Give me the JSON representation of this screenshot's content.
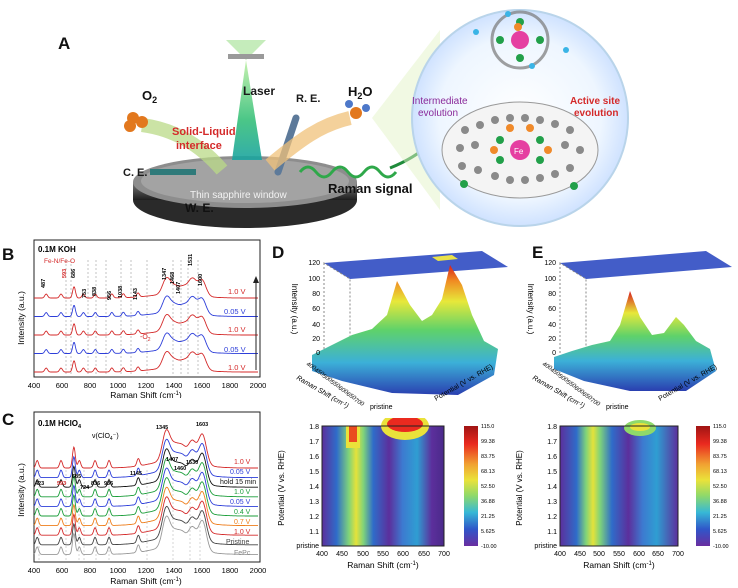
{
  "panel_labels": {
    "A": "A",
    "B": "B",
    "C": "C",
    "D": "D",
    "E": "E"
  },
  "schematic": {
    "o2": "O",
    "o2_sub": "2",
    "h2o_pre": "H",
    "h2o_sub": "2",
    "h2o_post": "O",
    "laser": "Laser",
    "re": "R. E.",
    "ce": "C. E.",
    "we": "W. E.",
    "interface_line1": "Solid-Liquid",
    "interface_line2": "interface",
    "window": "Thin sapphire window",
    "raman_signal": "Raman signal",
    "intermediate_line1": "Intermediate",
    "intermediate_line2": "evolution",
    "active_line1": "Active site",
    "active_line2": "evolution",
    "fe": "Fe"
  },
  "colors": {
    "red": "#d42a2a",
    "blue": "#2d3ed9",
    "green": "#1b9e3a",
    "orange": "#ee7e1c",
    "gray": "#999999",
    "darkgray": "#444444",
    "purple": "#8a2a9a"
  },
  "panel_B": {
    "title": "0.1M KOH",
    "label_fe": "Fe-N/Fe-O",
    "peak_labels": [
      "487",
      "593",
      "686",
      "753",
      "838",
      "956",
      "1038",
      "1143",
      "1347",
      "1468",
      "1407",
      "1531",
      "1600"
    ],
    "trace_labels": [
      "1.0 V",
      "0.05 V",
      "1.0 V",
      "0.05 V",
      "1.0 V"
    ],
    "o2_pre": "-O",
    "o2_sub": "2",
    "xaxis_label": "Raman Shift (cm",
    "xaxis_sup": "-1",
    "xaxis_end": ")",
    "yaxis_label": "Intensity (a.u.)",
    "xticks": [
      "400",
      "600",
      "800",
      "1000",
      "1200",
      "1400",
      "1600",
      "1800",
      "2000"
    ]
  },
  "panel_C": {
    "title": "0.1M HClO",
    "title_sub": "4",
    "annot_clo4_pre": "ν(ClO",
    "annot_clo4_sub": "4",
    "annot_clo4_post": "⁻)",
    "peak_labels": [
      "1345",
      "1603",
      "1407",
      "1530",
      "1460",
      "423",
      "593",
      "685",
      "724",
      "836",
      "936",
      "1145"
    ],
    "trace_labels": [
      "1.0 V",
      "0.05 V",
      "hold 15 min",
      "1.0 V",
      "0.05 V",
      "0.4 V",
      "0.7 V",
      "1.0 V",
      "Pristine",
      "FePc"
    ],
    "xaxis_label": "Raman Shift (cm",
    "xaxis_sup": "-1",
    "xaxis_end": ")",
    "yaxis_label": "Intensity (a.u.)",
    "xticks": [
      "400",
      "600",
      "800",
      "1000",
      "1200",
      "1400",
      "1600",
      "1800",
      "2000"
    ]
  },
  "panel_D_3d": {
    "zaxis_label": "Intensity (a.u.)",
    "zticks": [
      "0",
      "20",
      "40",
      "60",
      "80",
      "100",
      "120"
    ],
    "xaxis_label": "Raman Shift (cm",
    "xaxis_sup": "-1",
    "xaxis_end": ")",
    "xticks": [
      "400",
      "450",
      "500",
      "550",
      "600",
      "650",
      "700"
    ],
    "potential_label": "Potential (V vs. RHE)",
    "pristine": "pristine"
  },
  "panel_E_3d": {
    "zaxis_label": "Intensity (a.u.)",
    "zticks": [
      "0",
      "20",
      "40",
      "60",
      "80",
      "100",
      "120"
    ],
    "xaxis_label": "Raman Shift (cm",
    "xaxis_sup": "-1",
    "xaxis_end": ")",
    "xticks": [
      "400",
      "450",
      "500",
      "550",
      "600",
      "650",
      "700"
    ],
    "potential_label": "Potential (V vs. RHE)",
    "pristine": "pristine"
  },
  "panel_D_map": {
    "yaxis_label": "Potential (V vs. RHE)",
    "yticks": [
      "pristine",
      "1.1",
      "1.2",
      "1.3",
      "1.4",
      "1.5",
      "1.6",
      "1.7",
      "1.8"
    ],
    "xaxis_label": "Raman Shift (cm",
    "xaxis_sup": "-1",
    "xaxis_end": ")",
    "xticks": [
      "400",
      "450",
      "500",
      "550",
      "600",
      "650",
      "700"
    ],
    "colorbar": [
      "115.0",
      "99.38",
      "83.75",
      "68.13",
      "52.50",
      "36.88",
      "21.25",
      "5.625",
      "-10.00"
    ]
  },
  "panel_E_map": {
    "yaxis_label": "Potential (V vs. RHE)",
    "yticks": [
      "pristine",
      "1.1",
      "1.2",
      "1.3",
      "1.4",
      "1.5",
      "1.6",
      "1.7",
      "1.8"
    ],
    "xaxis_label": "Raman Shift (cm",
    "xaxis_sup": "-1",
    "xaxis_end": ")",
    "xticks": [
      "400",
      "450",
      "500",
      "550",
      "600",
      "650",
      "700"
    ],
    "colorbar": [
      "115.0",
      "99.38",
      "83.75",
      "68.13",
      "52.50",
      "36.88",
      "21.25",
      "5.625",
      "-10.00"
    ]
  },
  "chart_data": [
    {
      "type": "line",
      "title": "0.1M KOH",
      "xlabel": "Raman Shift (cm-1)",
      "ylabel": "Intensity (a.u.)",
      "xlim": [
        400,
        2000
      ],
      "series": [
        {
          "name": "1.0 V",
          "color": "red"
        },
        {
          "name": "0.05 V",
          "color": "blue"
        },
        {
          "name": "1.0 V",
          "color": "red"
        },
        {
          "name": "0.05 V",
          "color": "blue"
        },
        {
          "name": "1.0 V",
          "color": "red"
        }
      ],
      "peaks": [
        487,
        593,
        686,
        753,
        838,
        956,
        1038,
        1143,
        1347,
        1407,
        1468,
        1531,
        1600
      ]
    },
    {
      "type": "line",
      "title": "0.1M HClO4",
      "xlabel": "Raman Shift (cm-1)",
      "ylabel": "Intensity (a.u.)",
      "xlim": [
        400,
        2000
      ],
      "series": [
        {
          "name": "1.0 V",
          "color": "red"
        },
        {
          "name": "0.05 V",
          "color": "blue"
        },
        {
          "name": "hold 15 min",
          "color": "black"
        },
        {
          "name": "1.0 V",
          "color": "green"
        },
        {
          "name": "0.05 V",
          "color": "blue"
        },
        {
          "name": "0.4 V",
          "color": "green"
        },
        {
          "name": "0.7 V",
          "color": "orange"
        },
        {
          "name": "1.0 V",
          "color": "red"
        },
        {
          "name": "Pristine",
          "color": "darkgray"
        },
        {
          "name": "FePc",
          "color": "gray"
        }
      ],
      "peaks": [
        423,
        593,
        685,
        724,
        836,
        936,
        1145,
        1345,
        1407,
        1460,
        1530,
        1603
      ]
    },
    {
      "type": "heatmap",
      "title": "D",
      "xlabel": "Raman Shift (cm-1)",
      "ylabel": "Potential (V vs. RHE)",
      "xlim": [
        400,
        700
      ],
      "y_categories": [
        "pristine",
        "1.1",
        "1.2",
        "1.3",
        "1.4",
        "1.5",
        "1.6",
        "1.7",
        "1.8"
      ],
      "zlim": [
        -10,
        115
      ],
      "features": [
        {
          "shift": 490,
          "from": "pristine",
          "to": "1.8",
          "strength": "medium"
        },
        {
          "shift": 490,
          "from": "1.7",
          "to": "1.8",
          "strength": "high"
        },
        {
          "shift": 600,
          "from": "1.7",
          "to": "1.8",
          "strength": "high"
        }
      ]
    },
    {
      "type": "heatmap",
      "title": "E",
      "xlabel": "Raman Shift (cm-1)",
      "ylabel": "Potential (V vs. RHE)",
      "xlim": [
        400,
        700
      ],
      "y_categories": [
        "pristine",
        "1.1",
        "1.2",
        "1.3",
        "1.4",
        "1.5",
        "1.6",
        "1.7",
        "1.8"
      ],
      "zlim": [
        -10,
        115
      ],
      "features": [
        {
          "shift": 490,
          "from": "pristine",
          "to": "1.8",
          "strength": "medium"
        },
        {
          "shift": 610,
          "from": "1.75",
          "to": "1.8",
          "strength": "medium"
        }
      ]
    }
  ]
}
